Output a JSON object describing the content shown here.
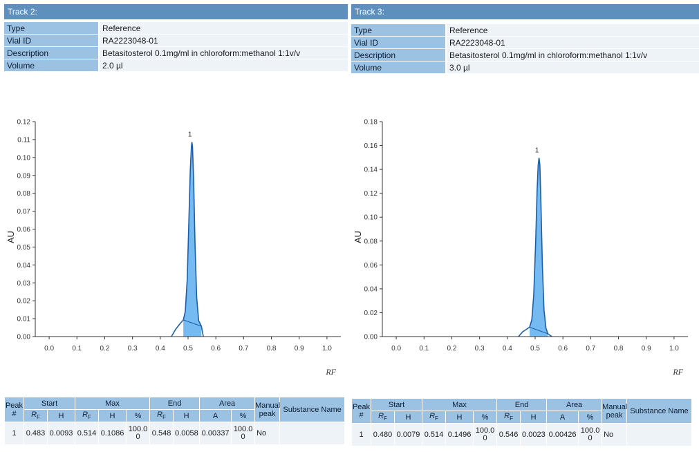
{
  "tracks": [
    {
      "header": "Track 2:",
      "info": [
        {
          "key": "Type",
          "value": "Reference"
        },
        {
          "key": "Vial ID",
          "value": "RA2223048-01"
        },
        {
          "key": "Description",
          "value": "Betasitosterol 0.1mg/ml in chloroform:methanol 1:1v/v"
        },
        {
          "key": "Volume",
          "value": "2.0 µl"
        }
      ],
      "table_headers": {
        "peak": "Peak",
        "start": "Start",
        "max": "Max",
        "end": "End",
        "area": "Area",
        "manual": "Manual peak",
        "substance": "Substance Name",
        "hash": "#",
        "rf": "R",
        "rf_sub": "F",
        "h": "H",
        "pct": "%",
        "a": "A"
      },
      "peaks": [
        {
          "num": "1",
          "start_rf": "0.483",
          "start_h": "0.0093",
          "max_rf": "0.514",
          "max_h": "0.1086",
          "max_pct": "100.00",
          "end_rf": "0.548",
          "end_h": "0.0058",
          "area_a": "0.00337",
          "area_pct": "100.00",
          "manual": "No",
          "substance": ""
        }
      ],
      "chart_data": {
        "type": "line",
        "title": "",
        "xlabel": "RF",
        "ylabel": "AU",
        "xlim": [
          -0.05,
          1.05
        ],
        "ylim": [
          0,
          0.12
        ],
        "x_ticks": [
          0.0,
          0.1,
          0.2,
          0.3,
          0.4,
          0.5,
          0.6,
          0.7,
          0.8,
          0.9,
          1.0
        ],
        "x_tick_labels": [
          "0.0",
          "0.1",
          "0.2",
          "0.3",
          "0.4",
          "0.5",
          "0.6",
          "0.7",
          "0.8",
          "0.9",
          "1.0"
        ],
        "y_ticks": [
          0.0,
          0.01,
          0.02,
          0.03,
          0.04,
          0.05,
          0.06,
          0.07,
          0.08,
          0.09,
          0.1,
          0.11,
          0.12
        ],
        "y_tick_labels": [
          "0.00",
          "0.01",
          "0.02",
          "0.03",
          "0.04",
          "0.05",
          "0.06",
          "0.07",
          "0.08",
          "0.09",
          "0.10",
          "0.11",
          "0.12"
        ],
        "series": [
          {
            "x": [
              0.44,
              0.455,
              0.47,
              0.483,
              0.49,
              0.497,
              0.503,
              0.508,
              0.512,
              0.514,
              0.516,
              0.52,
              0.525,
              0.531,
              0.538,
              0.548,
              0.555
            ],
            "y": [
              0.0,
              0.004,
              0.007,
              0.0093,
              0.014,
              0.032,
              0.065,
              0.093,
              0.106,
              0.1086,
              0.106,
              0.088,
              0.052,
              0.022,
              0.009,
              0.0058,
              0.0
            ]
          }
        ],
        "peak_labels": [
          {
            "x": 0.514,
            "y": 0.1086,
            "text": "1"
          }
        ],
        "peak_area": {
          "x_start": 0.483,
          "x_end": 0.548
        },
        "color_line": "#1c5ea8",
        "color_fill": "#5eaef0"
      }
    },
    {
      "header": "Track 3:",
      "info": [
        {
          "key": "Type",
          "value": "Reference"
        },
        {
          "key": "Vial ID",
          "value": "RA2223048-01"
        },
        {
          "key": "Description",
          "value": "Betasitosterol 0.1mg/ml in chloroform:methanol 1:1v/v"
        },
        {
          "key": "Volume",
          "value": "3.0 µl"
        }
      ],
      "table_headers": {
        "peak": "Peak",
        "start": "Start",
        "max": "Max",
        "end": "End",
        "area": "Area",
        "manual": "Manual peak",
        "substance": "Substance Name",
        "hash": "#",
        "rf": "R",
        "rf_sub": "F",
        "h": "H",
        "pct": "%",
        "a": "A"
      },
      "peaks": [
        {
          "num": "1",
          "start_rf": "0.480",
          "start_h": "0.0079",
          "max_rf": "0.514",
          "max_h": "0.1496",
          "max_pct": "100.00",
          "end_rf": "0.546",
          "end_h": "0.0023",
          "area_a": "0.00426",
          "area_pct": "100.00",
          "manual": "No",
          "substance": ""
        }
      ],
      "chart_data": {
        "type": "line",
        "title": "",
        "xlabel": "RF",
        "ylabel": "AU",
        "xlim": [
          -0.05,
          1.05
        ],
        "ylim": [
          0,
          0.18
        ],
        "x_ticks": [
          0.0,
          0.1,
          0.2,
          0.3,
          0.4,
          0.5,
          0.6,
          0.7,
          0.8,
          0.9,
          1.0
        ],
        "x_tick_labels": [
          "0.0",
          "0.1",
          "0.2",
          "0.3",
          "0.4",
          "0.5",
          "0.6",
          "0.7",
          "0.8",
          "0.9",
          "1.0"
        ],
        "y_ticks": [
          0.0,
          0.02,
          0.04,
          0.06,
          0.08,
          0.1,
          0.12,
          0.14,
          0.16,
          0.18
        ],
        "y_tick_labels": [
          "0.00",
          "0.02",
          "0.04",
          "0.06",
          "0.08",
          "0.10",
          "0.12",
          "0.14",
          "0.16",
          "0.18"
        ],
        "series": [
          {
            "x": [
              0.44,
              0.455,
              0.468,
              0.48,
              0.488,
              0.495,
              0.502,
              0.507,
              0.511,
              0.514,
              0.517,
              0.521,
              0.526,
              0.532,
              0.539,
              0.546,
              0.56
            ],
            "y": [
              0.0,
              0.004,
              0.006,
              0.0079,
              0.014,
              0.035,
              0.08,
              0.122,
              0.144,
              0.1496,
              0.144,
              0.11,
              0.06,
              0.022,
              0.007,
              0.0023,
              0.0
            ]
          }
        ],
        "peak_labels": [
          {
            "x": 0.514,
            "y": 0.1496,
            "text": "1"
          }
        ],
        "peak_area": {
          "x_start": 0.48,
          "x_end": 0.546
        },
        "color_line": "#1c5ea8",
        "color_fill": "#5eaef0"
      }
    }
  ]
}
